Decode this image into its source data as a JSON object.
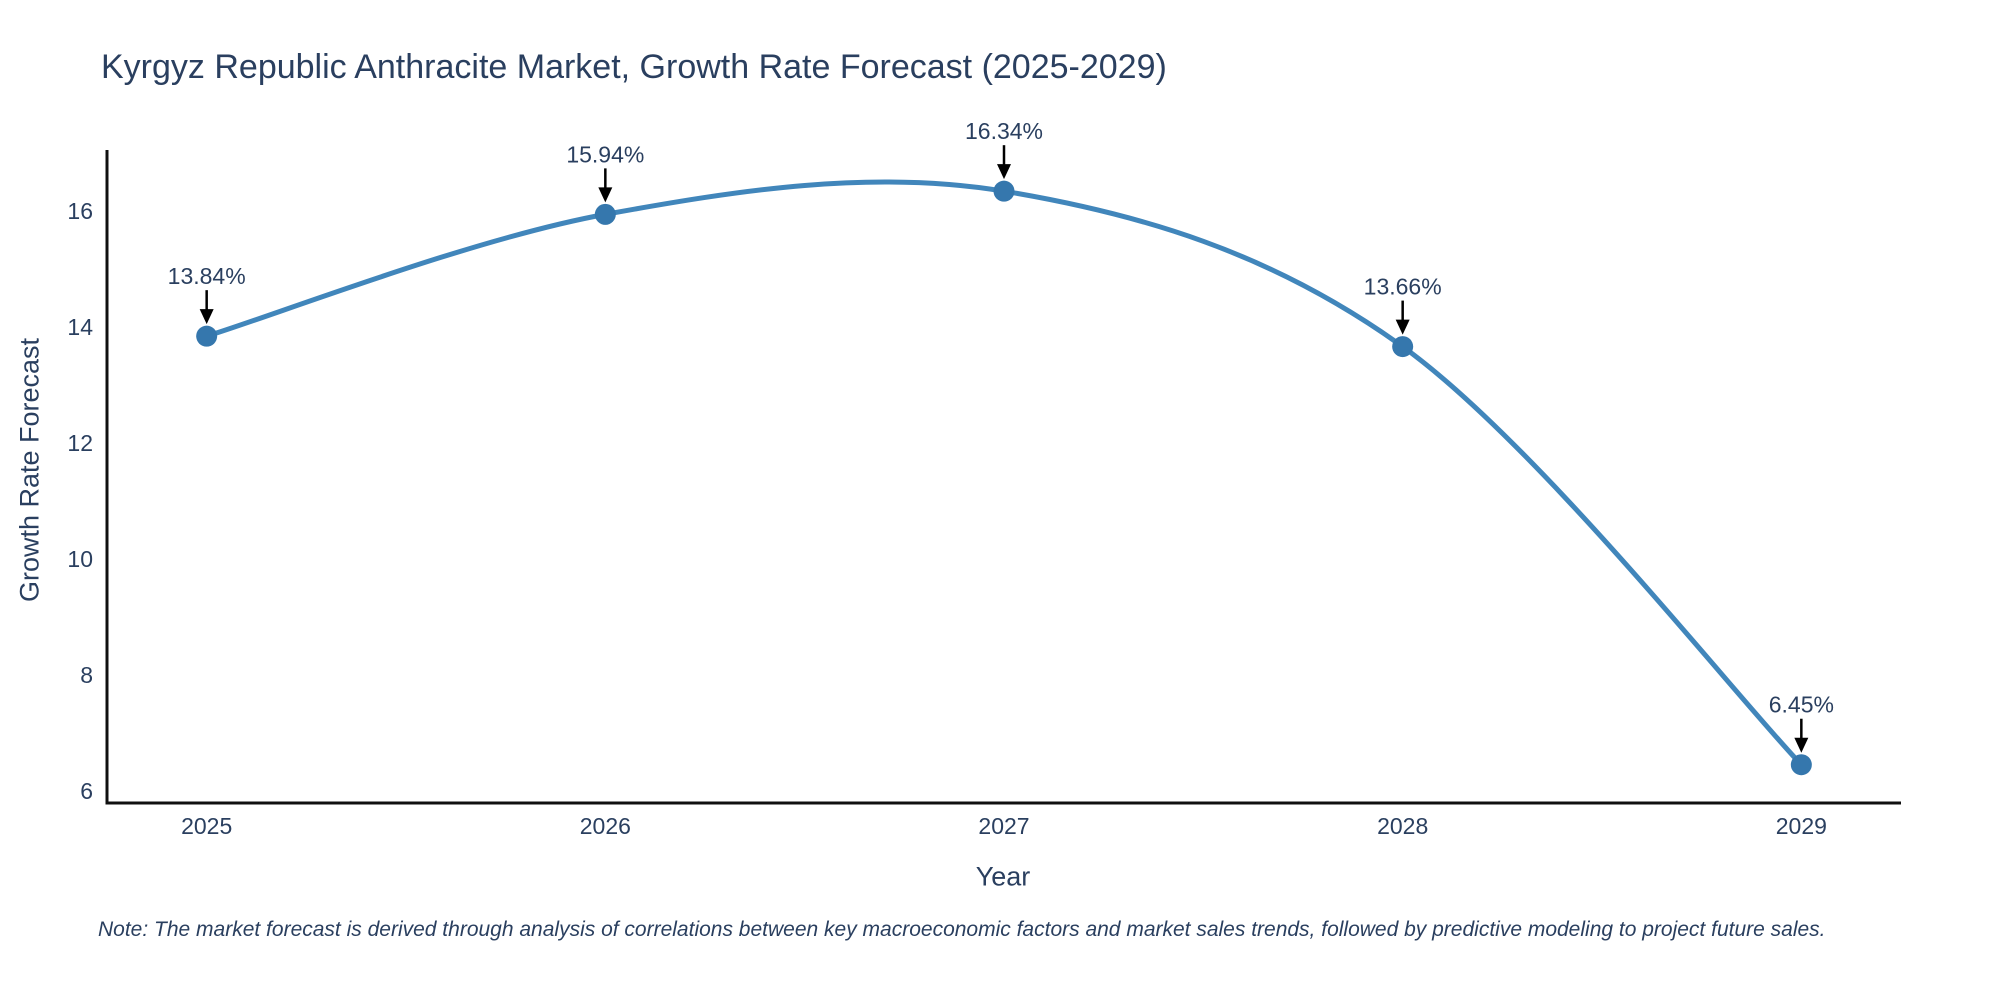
{
  "header": {
    "title": "Kyrgyz Republic Anthracite Market, Growth Rate Forecast (2025-2029)"
  },
  "footer": {
    "note": "Note: The market forecast is derived through analysis of correlations between key macroeconomic factors and market sales trends, followed by predictive modeling to project future sales."
  },
  "chart_data": {
    "type": "line",
    "title": "Kyrgyz Republic Anthracite Market, Growth Rate Forecast (2025-2029)",
    "xlabel": "Year",
    "ylabel": "Growth Rate Forecast",
    "x": [
      2025,
      2026,
      2027,
      2028,
      2029
    ],
    "values": [
      13.84,
      15.94,
      16.34,
      13.66,
      6.45
    ],
    "point_labels": [
      "13.84%",
      "15.94%",
      "16.34%",
      "13.66%",
      "6.45%"
    ],
    "xticks": [
      "2025",
      "2026",
      "2027",
      "2028",
      "2029"
    ],
    "yticks": [
      6,
      8,
      10,
      12,
      14,
      16
    ],
    "xlim": [
      2024.75,
      2029.25
    ],
    "ylim": [
      5.79,
      17.05
    ],
    "grid": false,
    "legend": "none",
    "line_shape": "spline",
    "colors": {
      "line": "#4186bb",
      "marker": "#3577ad",
      "arrow": "#000000",
      "text": "#2a3f5f",
      "axis": "#101010",
      "background": "#ffffff"
    }
  }
}
